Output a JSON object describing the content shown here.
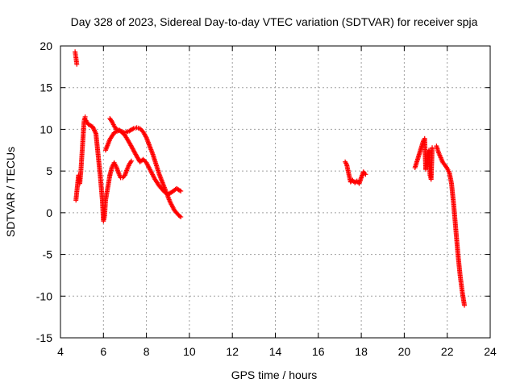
{
  "chart_data": {
    "type": "scatter",
    "title": "Day 328 of 2023, Sidereal Day-to-day VTEC variation (SDTVAR) for receiver spja",
    "xlabel": "GPS time / hours",
    "ylabel": "SDTVAR / TECUs",
    "xlim": [
      4,
      24
    ],
    "ylim": [
      -15,
      20
    ],
    "xticks": [
      4,
      6,
      8,
      10,
      12,
      14,
      16,
      18,
      20,
      22,
      24
    ],
    "yticks": [
      -15,
      -10,
      -5,
      0,
      5,
      10,
      15,
      20
    ],
    "xtick_labels": [
      "4",
      "6",
      "8",
      "10",
      "12",
      "14",
      "16",
      "18",
      "20",
      "22",
      "24"
    ],
    "ytick_labels": [
      "-15",
      "-10",
      "-5",
      "0",
      "5",
      "10",
      "15",
      "20"
    ],
    "grid": true,
    "marker": "plus",
    "marker_color": "#ff0000",
    "segments": [
      {
        "x": [
          4.68,
          4.72,
          4.76
        ],
        "y": [
          19.3,
          18.6,
          17.8
        ]
      },
      {
        "x": [
          4.72,
          4.78,
          4.84,
          4.9,
          4.95,
          5.0,
          5.05,
          5.1,
          5.15
        ],
        "y": [
          1.5,
          3.0,
          4.5,
          3.5,
          5.0,
          7.0,
          9.0,
          11.0,
          11.5
        ]
      },
      {
        "x": [
          5.15,
          5.3,
          5.5,
          5.65,
          5.75,
          5.85,
          5.95,
          6.0,
          6.05,
          6.1,
          6.2,
          6.3
        ],
        "y": [
          11.2,
          10.6,
          10.3,
          9.5,
          7.0,
          4.5,
          1.5,
          -1.0,
          -0.5,
          1.5,
          3.0,
          4.5
        ]
      },
      {
        "x": [
          6.3,
          6.4,
          6.5,
          6.6,
          6.7,
          6.8,
          6.9,
          7.0,
          7.1,
          7.2,
          7.3
        ],
        "y": [
          4.5,
          5.5,
          6.0,
          5.5,
          4.8,
          4.2,
          4.2,
          4.5,
          5.2,
          5.8,
          6.2
        ]
      },
      {
        "x": [
          6.3,
          6.4,
          6.5,
          6.6,
          6.8,
          7.0,
          7.2,
          7.4,
          7.55,
          7.7,
          7.85,
          8.0,
          8.15,
          8.3,
          8.45,
          8.6,
          8.75,
          8.9,
          9.1,
          9.3,
          9.5,
          9.6
        ],
        "y": [
          11.3,
          10.9,
          10.4,
          10.0,
          9.8,
          9.6,
          9.8,
          10.1,
          10.2,
          10.1,
          9.7,
          9.0,
          8.0,
          7.0,
          5.8,
          4.6,
          3.6,
          2.6,
          1.3,
          0.3,
          -0.3,
          -0.5
        ]
      },
      {
        "x": [
          6.1,
          6.3,
          6.5,
          6.75,
          7.0,
          7.25,
          7.5,
          7.7,
          7.85,
          8.0,
          8.2,
          8.4,
          8.6,
          8.8,
          9.0,
          9.2,
          9.4,
          9.6
        ],
        "y": [
          7.5,
          8.8,
          9.6,
          9.9,
          9.3,
          8.2,
          7.0,
          6.1,
          6.4,
          6.0,
          5.0,
          4.0,
          3.2,
          2.6,
          2.2,
          2.5,
          2.9,
          2.6
        ]
      },
      {
        "x": [
          17.25,
          17.32,
          17.5,
          17.6,
          17.7,
          17.8,
          17.9,
          18.1,
          18.2
        ],
        "y": [
          6.1,
          5.8,
          3.7,
          3.9,
          3.6,
          3.8,
          3.5,
          4.9,
          4.6
        ]
      },
      {
        "x": [
          20.5,
          20.9,
          20.95,
          21.0,
          21.15,
          21.2,
          21.25,
          21.3
        ],
        "y": [
          5.4,
          8.7,
          8.9,
          5.2,
          7.5,
          4.5,
          4.0,
          7.8
        ]
      },
      {
        "x": [
          21.5,
          21.6,
          21.7,
          21.8,
          21.9,
          22.0,
          22.1,
          22.2,
          22.3,
          22.4,
          22.5,
          22.6,
          22.7,
          22.8
        ],
        "y": [
          8.0,
          7.2,
          6.6,
          6.0,
          5.7,
          5.3,
          4.8,
          3.5,
          1.0,
          -2.0,
          -5.0,
          -7.5,
          -9.5,
          -11.1
        ]
      }
    ]
  }
}
